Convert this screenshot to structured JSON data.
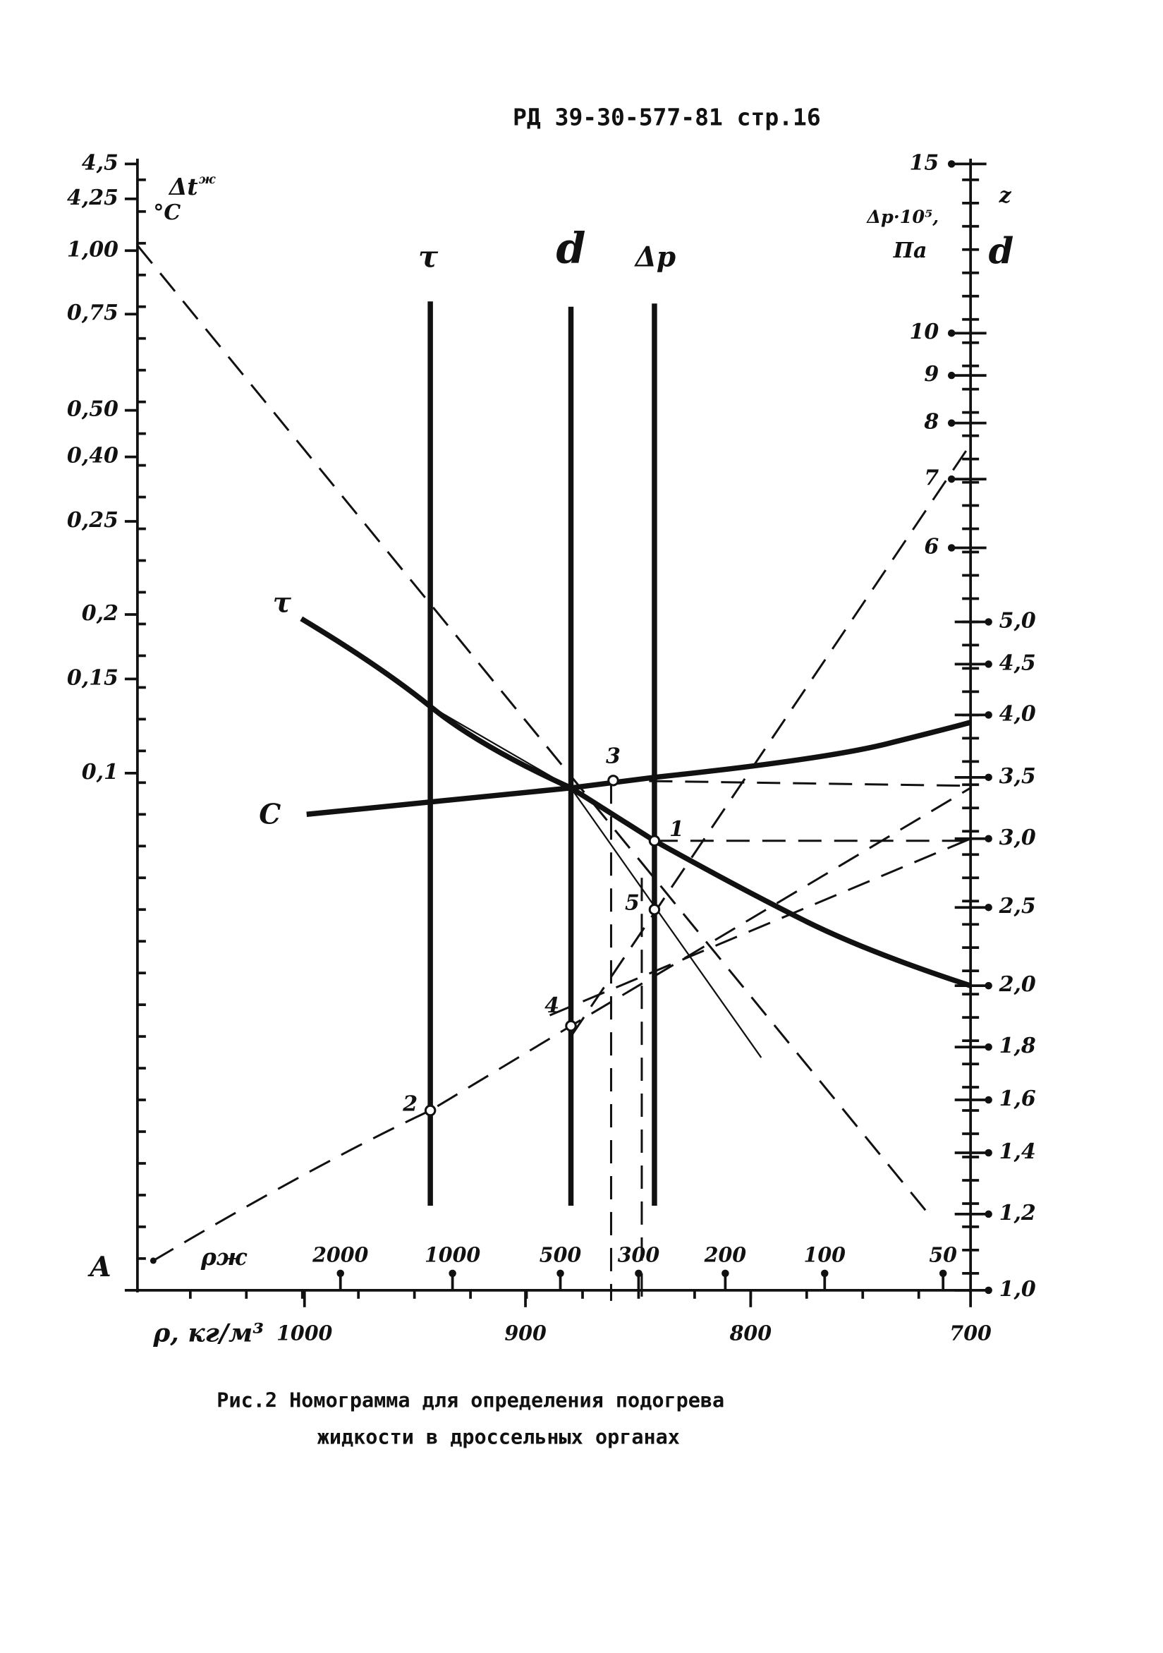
{
  "header": {
    "text": "РД 39-30-577-81 стр.16"
  },
  "left_axis": {
    "title": "Δt",
    "subscript": "ж",
    "unit": "°C",
    "ticks": [
      "4,5",
      "4,25",
      "1,00",
      "0,75",
      "0,50",
      "0,40",
      "0,25",
      "0,2",
      "0,15",
      "0,1"
    ]
  },
  "right_axis": {
    "title_z": "z",
    "title_dp": "Δp·10⁵,",
    "unit": "Па",
    "title_d": "d",
    "ticks": [
      "15",
      "10",
      "9",
      "8",
      "7",
      "6",
      "5,0",
      "4,5",
      "4,0",
      "3,5",
      "3,0",
      "2,5",
      "2,0",
      "1,8",
      "1,6",
      "1,4",
      "1,2",
      "1,0"
    ]
  },
  "scale_labels": {
    "tau": "τ",
    "d": "d",
    "dp": "Δp"
  },
  "curve_labels": {
    "tau": "τ",
    "c": "C"
  },
  "points": [
    "1",
    "2",
    "3",
    "4",
    "5"
  ],
  "point_a": "A",
  "bottom": {
    "rho_liquid_label": "ρж",
    "rho_liquid_ticks": [
      "2000",
      "1000",
      "500",
      "300",
      "200",
      "100",
      "50"
    ],
    "rho_label": "ρ, кг/м³",
    "rho_ticks": [
      "1000",
      "900",
      "800",
      "700"
    ]
  },
  "caption": {
    "lines": [
      "Рис.2  Номограмма для определения подогрева",
      "жидкости в дроссельных органах"
    ]
  }
}
